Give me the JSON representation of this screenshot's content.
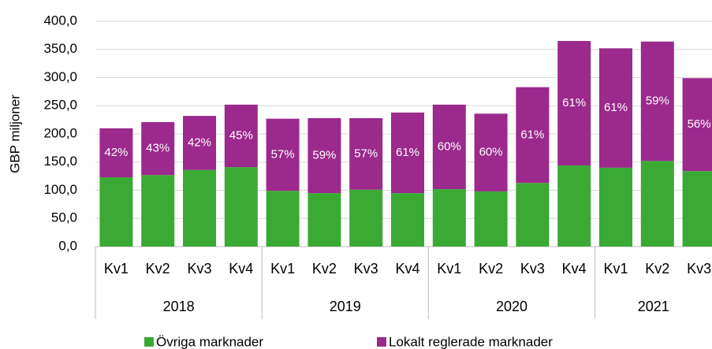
{
  "chart_data": {
    "type": "stacked_bar",
    "y_label": "GBP miljoner",
    "categories": [
      "Kv1",
      "Kv2",
      "Kv3",
      "Kv4",
      "Kv1",
      "Kv2",
      "Kv3",
      "Kv4",
      "Kv1",
      "Kv2",
      "Kv3",
      "Kv4",
      "Kv1",
      "Kv2",
      "Kv3"
    ],
    "groups": [
      {
        "name": "2018",
        "size": 4
      },
      {
        "name": "2019",
        "size": 4
      },
      {
        "name": "2020",
        "size": 4
      },
      {
        "name": "2021",
        "size": 3
      }
    ],
    "series": [
      {
        "name": "Övriga marknader",
        "color": "#3aaa35",
        "values": [
          123,
          127,
          136,
          141,
          99,
          95,
          101,
          95,
          102,
          98,
          113,
          144,
          140,
          152,
          134
        ]
      },
      {
        "name": "Lokalt reglerade marknader",
        "color": "#9b2a8c",
        "values": [
          87,
          94,
          96,
          111,
          128,
          133,
          127,
          143,
          150,
          138,
          170,
          221,
          212,
          212,
          165
        ]
      }
    ],
    "annotations": [
      "42%",
      "43%",
      "42%",
      "45%",
      "57%",
      "59%",
      "57%",
      "61%",
      "60%",
      "60%",
      "61%",
      "61%",
      "61%",
      "59%",
      "56%"
    ],
    "ylim": [
      0,
      400
    ],
    "yticks": [
      {
        "value": 0,
        "label": "0,0"
      },
      {
        "value": 50,
        "label": "50,0"
      },
      {
        "value": 100,
        "label": "100,0"
      },
      {
        "value": 150,
        "label": "150,0"
      },
      {
        "value": 200,
        "label": "200,0"
      },
      {
        "value": 250,
        "label": "250,0"
      },
      {
        "value": 300,
        "label": "300,0"
      },
      {
        "value": 350,
        "label": "350,0"
      },
      {
        "value": 400,
        "label": "400,0"
      }
    ],
    "grid": true
  }
}
